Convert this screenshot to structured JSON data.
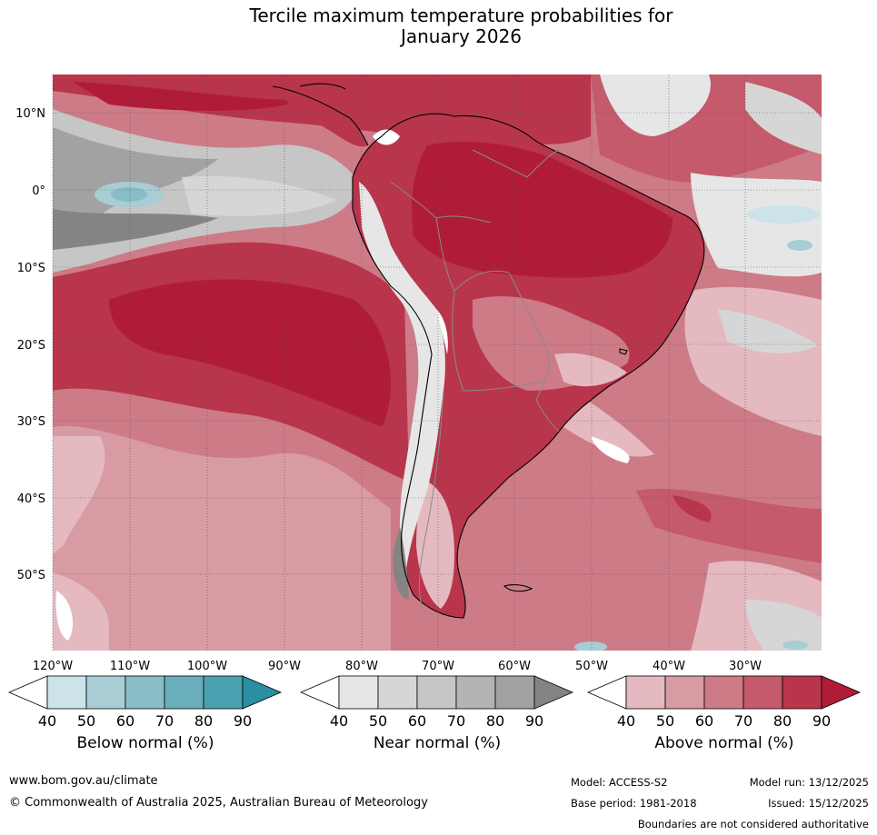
{
  "title": {
    "line1": "Tercile maximum temperature probabilities for",
    "line2": "January 2026"
  },
  "map": {
    "lat_labels": [
      "10°N",
      "0°",
      "10°S",
      "20°S",
      "30°S",
      "40°S",
      "50°S"
    ],
    "lon_labels": [
      "120°W",
      "110°W",
      "100°W",
      "90°W",
      "80°W",
      "70°W",
      "60°W",
      "50°W",
      "40°W",
      "30°W"
    ]
  },
  "colorbars": [
    {
      "label": "Below normal (%)",
      "ticks": [
        "40",
        "50",
        "60",
        "70",
        "80",
        "90"
      ],
      "colors": [
        "#ffffff",
        "#cbe3e9",
        "#a8cdd4",
        "#8bbdc6",
        "#6aaebb",
        "#4aa1b0",
        "#2a8fa2"
      ]
    },
    {
      "label": "Near normal (%)",
      "ticks": [
        "40",
        "50",
        "60",
        "70",
        "80",
        "90"
      ],
      "colors": [
        "#ffffff",
        "#e6e6e6",
        "#d6d6d6",
        "#c6c6c6",
        "#b4b4b4",
        "#a2a2a2",
        "#848484"
      ]
    },
    {
      "label": "Above normal (%)",
      "ticks": [
        "40",
        "50",
        "60",
        "70",
        "80",
        "90"
      ],
      "colors": [
        "#ffffff",
        "#e4b9bf",
        "#d89aa3",
        "#cd7b87",
        "#c45a6b",
        "#b8354b",
        "#b01c38"
      ]
    }
  ],
  "footer": {
    "website": "www.bom.gov.au/climate",
    "copyright": "© Commonwealth of Australia 2025, Australian Bureau of Meteorology",
    "model": "Model: ACCESS-S2",
    "model_run": "Model run: 13/12/2025",
    "base_period": "Base period: 1981-2018",
    "issued": "Issued: 15/12/2025",
    "disclaimer": "Boundaries are not considered authoritative"
  }
}
